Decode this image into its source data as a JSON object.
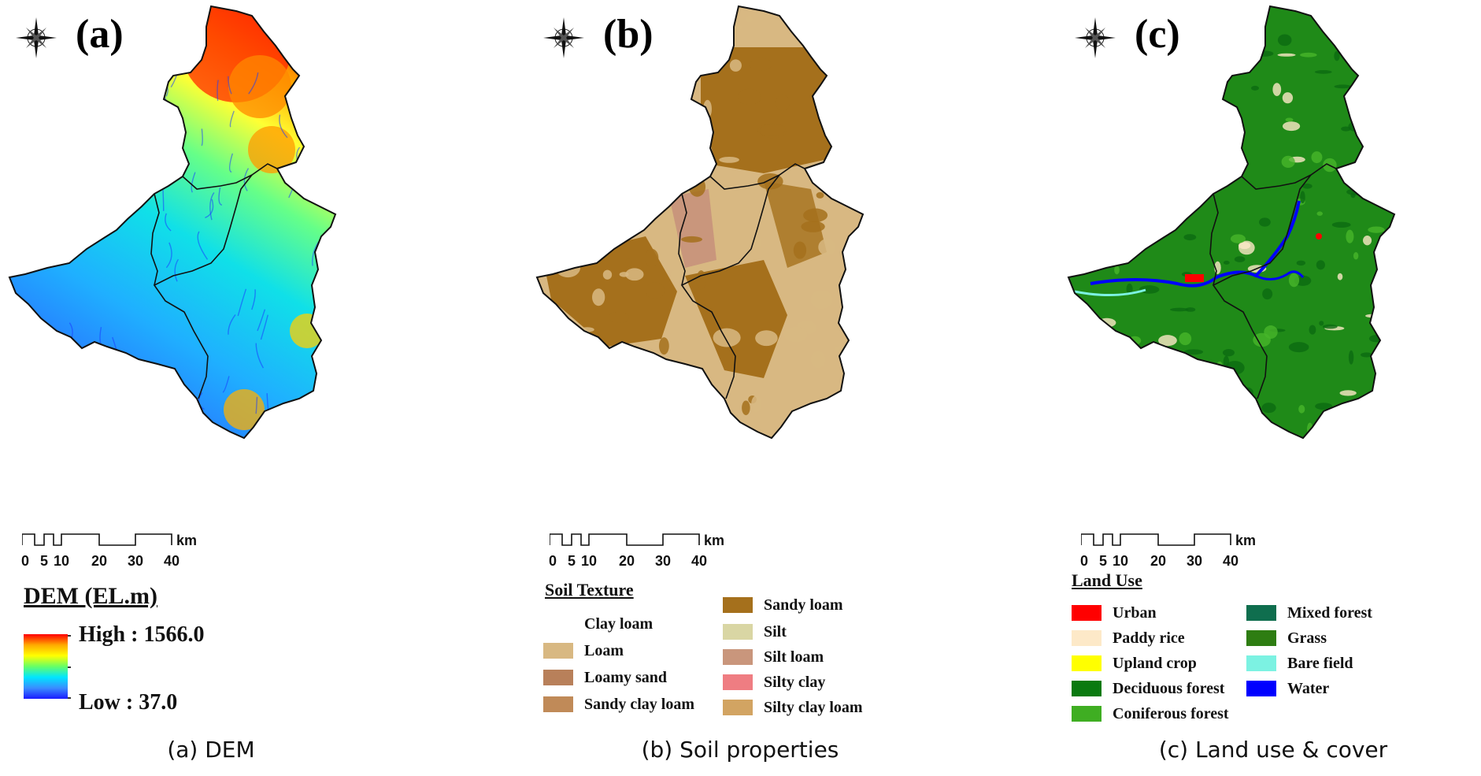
{
  "panels": {
    "a": {
      "letter": "(a)",
      "caption": "(a) DEM"
    },
    "b": {
      "letter": "(b)",
      "caption": "(b) Soil properties"
    },
    "c": {
      "letter": "(c)",
      "caption": "(c) Land use & cover"
    }
  },
  "scalebar": {
    "ticks": [
      "0",
      "5",
      "10",
      "20",
      "30",
      "40"
    ],
    "unit": "km"
  },
  "dem_legend": {
    "title": "DEM (EL.m)",
    "high": "High : 1566.0",
    "low": "Low : 37.0",
    "ramp_colors": [
      "#ff0000",
      "#ffaa00",
      "#ffff00",
      "#66ff66",
      "#00e5ff",
      "#3a8dff",
      "#1a1aff"
    ]
  },
  "soil_legend": {
    "title": "Soil Texture",
    "items": [
      {
        "label": "Clay loam",
        "color": ""
      },
      {
        "label": "Loam",
        "color": "#d8b882"
      },
      {
        "label": "Loamy sand",
        "color": "#b8805a"
      },
      {
        "label": "Sandy clay loam",
        "color": "#c08a58"
      },
      {
        "label": "Sandy loam",
        "color": "#a5701c"
      },
      {
        "label": "Silt",
        "color": "#d9d6a4"
      },
      {
        "label": "Silt loam",
        "color": "#c9967c"
      },
      {
        "label": "Silty clay",
        "color": "#ef7d82"
      },
      {
        "label": "Silty clay loam",
        "color": "#d2a462"
      }
    ]
  },
  "landuse_legend": {
    "title": "Land Use",
    "items": [
      {
        "label": "Urban",
        "color": "#ff0000"
      },
      {
        "label": "Paddy rice",
        "color": "#fde9c8"
      },
      {
        "label": "Upland crop",
        "color": "#ffff00"
      },
      {
        "label": "Deciduous forest",
        "color": "#0a7a10"
      },
      {
        "label": "Coniferous forest",
        "color": "#3fae22"
      },
      {
        "label": "Mixed forest",
        "color": "#0f6e4e"
      },
      {
        "label": "Grass",
        "color": "#2e7d12"
      },
      {
        "label": "Bare field",
        "color": "#7cf2e2"
      },
      {
        "label": "Water",
        "color": "#0000ff"
      }
    ]
  },
  "map_colors": {
    "soil_base": "#d8b882",
    "soil_dark": "#a5701c",
    "soil_pink": "#c9967c",
    "lu_base": "#1f8a18",
    "lu_light": "#47b52a",
    "lu_dark": "#0b6a12"
  }
}
